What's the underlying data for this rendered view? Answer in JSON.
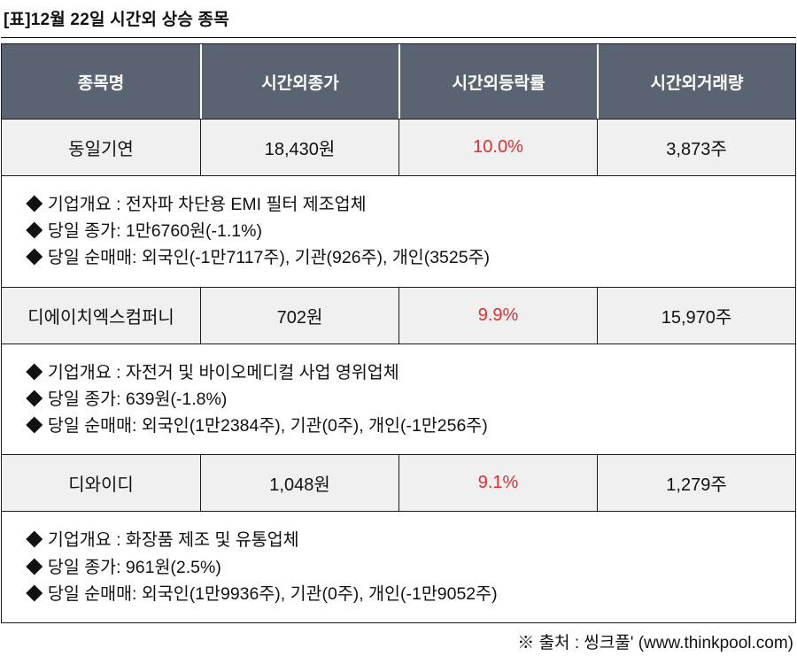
{
  "page": {
    "title": "[표]12월 22일 시간외 상승 종목",
    "source": "※ 출처 : 씽크풀' (www.thinkpool.com)"
  },
  "colors": {
    "header_bg": "#5a6372",
    "row_bg": "#f0f0f0",
    "change_red": "#e12d2d"
  },
  "table": {
    "headers": [
      "종목명",
      "시간외종가",
      "시간외등락률",
      "시간외거래량"
    ],
    "rows": [
      {
        "name": "동일기연",
        "price": "18,430원",
        "change": "10.0%",
        "volume": "3,873주",
        "details": [
          "◆ 기업개요 : 전자파 차단용 EMI 필터 제조업체",
          "◆ 당일 종가: 1만6760원(-1.1%)",
          "◆ 당일 순매매: 외국인(-1만7117주), 기관(926주), 개인(3525주)"
        ]
      },
      {
        "name": "디에이치엑스컴퍼니",
        "price": "702원",
        "change": "9.9%",
        "volume": "15,970주",
        "details": [
          "◆ 기업개요 : 자전거 및 바이오메디컬 사업 영위업체",
          "◆ 당일 종가: 639원(-1.8%)",
          "◆ 당일 순매매: 외국인(1만2384주), 기관(0주), 개인(-1만256주)"
        ]
      },
      {
        "name": "디와이디",
        "price": "1,048원",
        "change": "9.1%",
        "volume": "1,279주",
        "details": [
          "◆ 기업개요 : 화장품 제조 및 유통업체",
          "◆ 당일 종가: 961원(2.5%)",
          "◆ 당일 순매매: 외국인(1만9936주), 기관(0주), 개인(-1만9052주)"
        ]
      }
    ]
  }
}
